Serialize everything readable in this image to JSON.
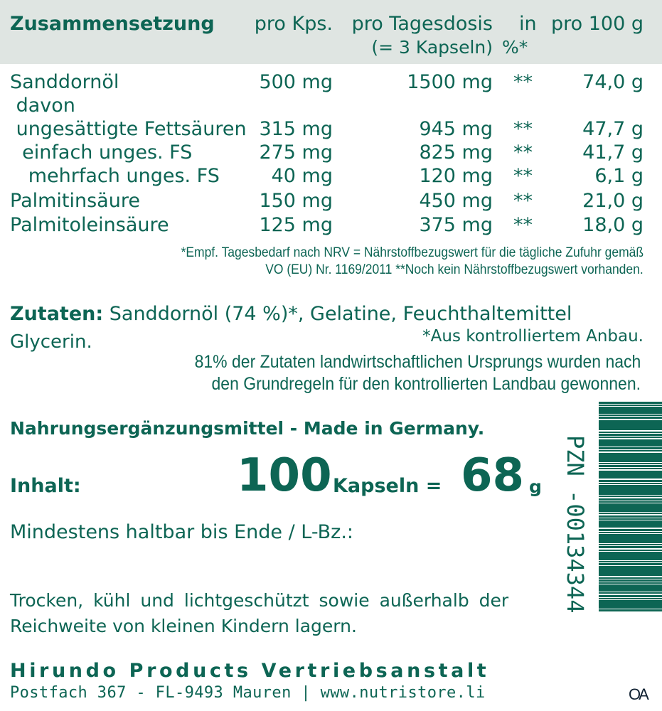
{
  "table": {
    "headers": [
      "Zusammensetzung",
      "pro Kps.",
      "pro Tagesdosis",
      "(= 3 Kapseln)",
      "in",
      "%*",
      "pro 100 g"
    ],
    "rows": [
      {
        "name": "Sanddornöl",
        "kps": "500 mg",
        "dose": "1500 mg",
        "pct": "**",
        "per100": "74,0 g"
      },
      {
        "name": " davon",
        "kps": "",
        "dose": "",
        "pct": "",
        "per100": ""
      },
      {
        "name": " ungesättigte Fettsäuren",
        "kps": "315 mg",
        "dose": "945 mg",
        "pct": "**",
        "per100": "47,7 g"
      },
      {
        "name": "  einfach unges. FS",
        "kps": "275 mg",
        "dose": "825 mg",
        "pct": "**",
        "per100": "41,7 g"
      },
      {
        "name": "   mehrfach unges. FS",
        "kps": "40 mg",
        "dose": "120 mg",
        "pct": "**",
        "per100": "6,1 g"
      },
      {
        "name": "Palmitinsäure",
        "kps": "150 mg",
        "dose": "450 mg",
        "pct": "**",
        "per100": "21,0 g"
      },
      {
        "name": "Palmitoleinsäure",
        "kps": "125 mg",
        "dose": "375 mg",
        "pct": "**",
        "per100": "18,0 g"
      }
    ],
    "footnote1": "*Empf. Tagesbedarf nach NRV = Nährstoffbezugswert für die tägliche Zufuhr gemäß",
    "footnote2": "VO (EU) Nr. 1169/2011   **Noch kein Nährstoffbezugswert vorhanden."
  },
  "ingredients": {
    "label": "Zutaten:",
    "text1": "Sanddornöl (74 %)*, Gelatine, Feuchthaltemittel",
    "text2": "Glycerin.",
    "organic": "*Aus kontrolliertem Anbau.",
    "note1": "81% der Zutaten landwirtschaftlichen Ursprungs wurden nach",
    "note2": "den Grundregeln für den kontrollierten Landbau gewonnen."
  },
  "product": {
    "type": "Nahrungsergänzungsmittel - Made in Germany.",
    "content_label": "Inhalt:",
    "count": "100",
    "unit": "Kapseln =",
    "weight": "68",
    "weight_unit": "g",
    "best_before": "Mindestens haltbar bis Ende / L-Bz.:",
    "storage1": "Trocken, kühl und lichtgeschützt sowie außerhalb der",
    "storage2": "Reichweite von kleinen Kindern lagern."
  },
  "company": {
    "name": "Hirundo Products Vertriebsanstalt",
    "address": "Postfach 367 - FL-9493 Mauren | www.nutristore.li"
  },
  "barcode": {
    "pzn": "PZN -00134344",
    "mark": "OA"
  },
  "colors": {
    "text": "#0d6554",
    "header_bg": "#dfe5e2"
  }
}
